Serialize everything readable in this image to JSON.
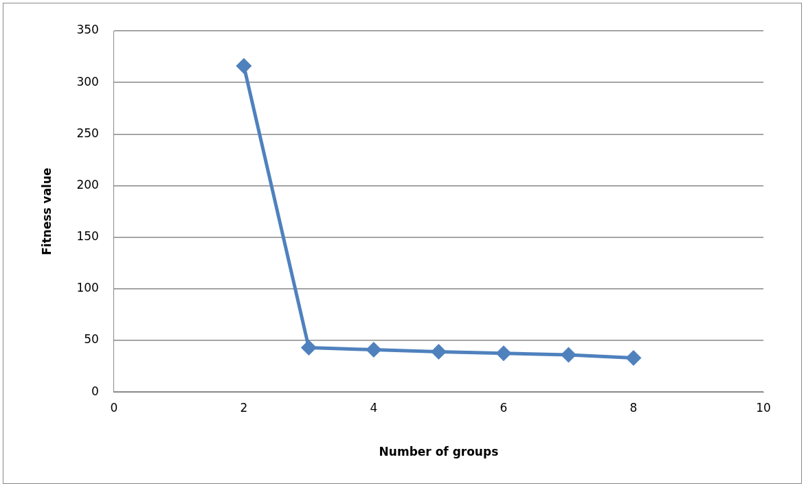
{
  "chart_data": {
    "type": "line",
    "xlabel": "Number of groups",
    "ylabel": "Fitness value",
    "x": [
      2,
      3,
      4,
      5,
      6,
      7,
      8
    ],
    "series": [
      {
        "color": "#4f81bd",
        "values": [
          316,
          43,
          41,
          39,
          37.5,
          36,
          33
        ]
      }
    ],
    "xlim": [
      0,
      10
    ],
    "xticks": [
      0,
      2,
      4,
      6,
      8,
      10
    ],
    "ylim": [
      0,
      350
    ],
    "yticks": [
      0,
      50,
      100,
      150,
      200,
      250,
      300,
      350
    ],
    "grid": "y",
    "legend": false,
    "marker": "diamond",
    "line_style": "solid"
  }
}
